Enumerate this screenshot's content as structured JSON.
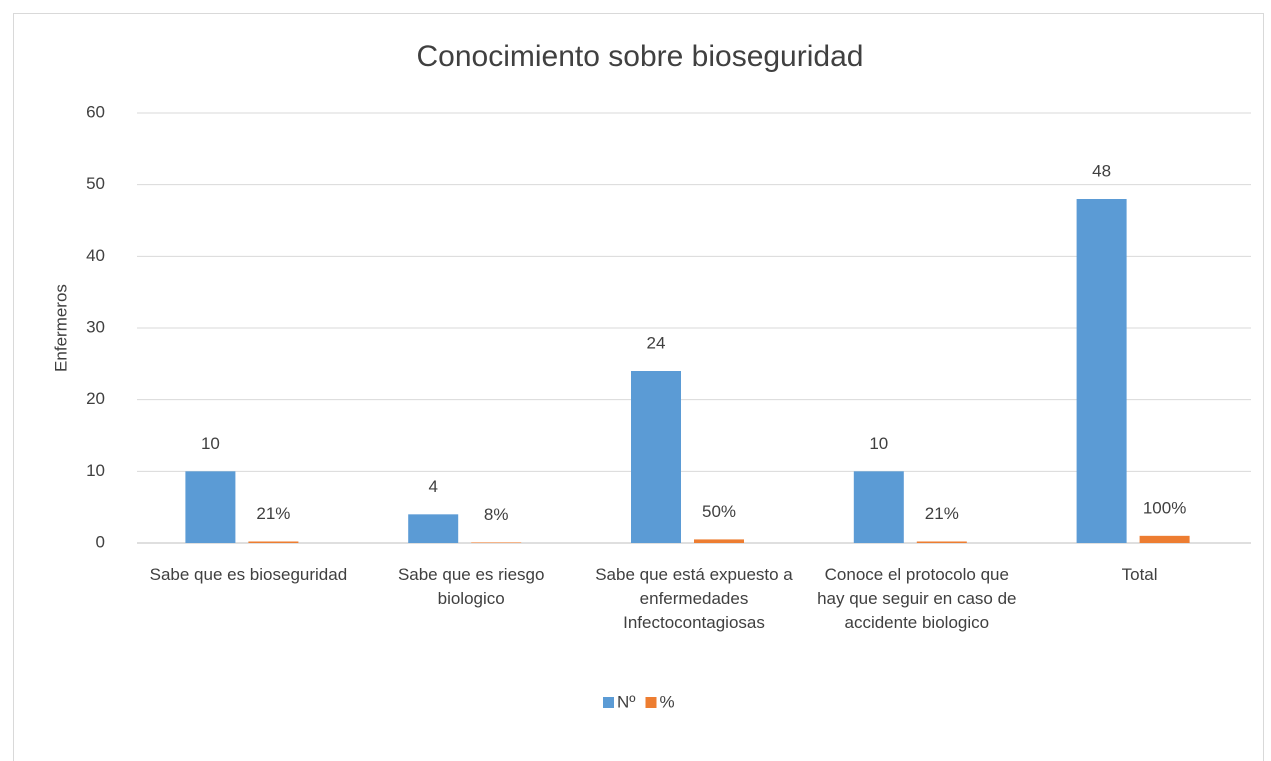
{
  "chart_data": {
    "type": "bar",
    "title": "Conocimiento sobre bioseguridad",
    "ylabel": "Enfermeros",
    "categories": [
      "Sabe que es bioseguridad",
      "Sabe que es riesgo biologico",
      "Sabe que está expuesto a enfermedades Infectocontagiosas",
      "Conoce el protocolo que hay que seguir en caso de accidente biologico",
      "Total"
    ],
    "series": [
      {
        "name": "Nº",
        "color": "#5b9bd5",
        "values": [
          10,
          4,
          24,
          10,
          48
        ]
      },
      {
        "name": "%",
        "color": "#ed7d31",
        "values": [
          0.21,
          0.08,
          0.5,
          0.21,
          1
        ],
        "value_labels": [
          "21%",
          "8%",
          "50%",
          "21%",
          "100%"
        ]
      }
    ],
    "ylim": [
      0,
      60
    ],
    "yticks": [
      0,
      10,
      20,
      30,
      40,
      50,
      60
    ],
    "grid": true,
    "legend": "bottom"
  }
}
